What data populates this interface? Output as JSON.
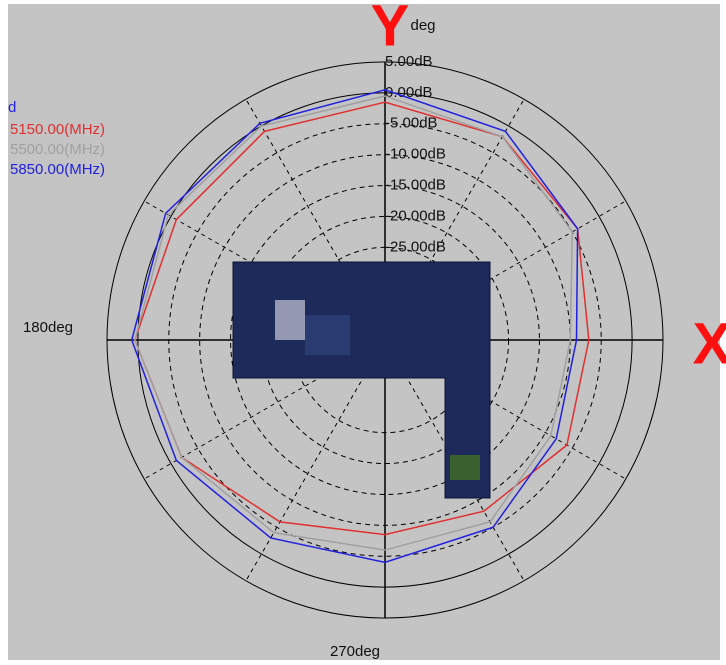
{
  "chart_data": {
    "type": "polar",
    "legend_title": "d",
    "angle_labels": [
      {
        "angle": 90,
        "label": "deg"
      },
      {
        "angle": 180,
        "label": "180deg"
      },
      {
        "angle": 270,
        "label": "270deg"
      }
    ],
    "axis_marks": {
      "y": "Y",
      "x": "X"
    },
    "x": [
      0,
      30,
      60,
      90,
      120,
      150,
      180,
      210,
      240,
      270,
      300,
      330
    ],
    "series": [
      {
        "name": "5150.00(MHz)",
        "color": "#e03030",
        "values": [
          -7,
          -4,
          -2,
          -1.5,
          -1,
          -1,
          0.5,
          -2,
          -6,
          -8.5,
          -8,
          -6
        ]
      },
      {
        "name": "5500.00(MHz)",
        "color": "#a0a0a0",
        "values": [
          -10,
          -5,
          -2,
          -0.5,
          0,
          0.5,
          0.5,
          -2,
          -4,
          -6,
          -6,
          -9
        ]
      },
      {
        "name": "5850.00(MHz)",
        "color": "#2020e0",
        "values": [
          -9,
          -4,
          -1,
          0.5,
          0.5,
          1,
          1,
          -1,
          -3,
          -4,
          -5,
          -8
        ]
      }
    ],
    "rlim": [
      -40,
      5
    ],
    "rticks": [
      {
        "value": 5,
        "label": "5.00dB"
      },
      {
        "value": 0,
        "label": "0.00dB"
      },
      {
        "value": -5,
        "label": "-5.00dB"
      },
      {
        "value": -10,
        "label": "-10.00dB"
      },
      {
        "value": -15,
        "label": "-15.00dB"
      },
      {
        "value": -20,
        "label": "-20.00dB"
      },
      {
        "value": -25,
        "label": "-25.00dB"
      }
    ],
    "grid": true
  }
}
